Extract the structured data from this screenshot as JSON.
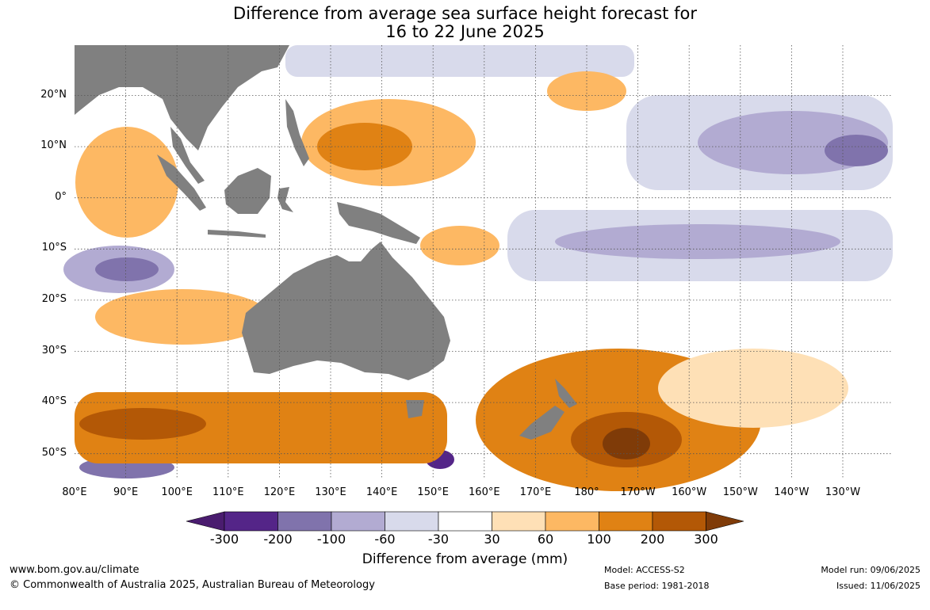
{
  "title_line1": "Difference from average sea surface height forecast for",
  "title_line2": "16 to 22 June 2025",
  "lat_labels": [
    "20°N",
    "10°N",
    "0°",
    "10°S",
    "20°S",
    "30°S",
    "40°S",
    "50°S"
  ],
  "lon_labels": [
    "80°E",
    "90°E",
    "100°E",
    "110°E",
    "120°E",
    "130°E",
    "140°E",
    "150°E",
    "160°E",
    "170°E",
    "180°",
    "170°W",
    "160°W",
    "150°W",
    "140°W",
    "130°W"
  ],
  "colorbar": {
    "label": "Difference from average (mm)",
    "ticks": [
      "-300",
      "-200",
      "-100",
      "-60",
      "-30",
      "30",
      "60",
      "100",
      "200",
      "300"
    ],
    "colors": [
      "#4a1c6f",
      "#542588",
      "#8073ac",
      "#b2abd2",
      "#d8daeb",
      "#ffffff",
      "#fee0b6",
      "#fdb863",
      "#e08214",
      "#b35806",
      "#7f3b08"
    ]
  },
  "colors": {
    "land": "#808080",
    "grid": "#555555"
  },
  "footer": {
    "url": "www.bom.gov.au/climate",
    "copyright": "© Commonwealth of Australia 2025, Australian Bureau of Meteorology",
    "model": "Model: ACCESS-S2",
    "base_period": "Base period: 1981-2018",
    "model_run": "Model run: 09/06/2025",
    "issued": "Issued: 11/06/2025"
  }
}
